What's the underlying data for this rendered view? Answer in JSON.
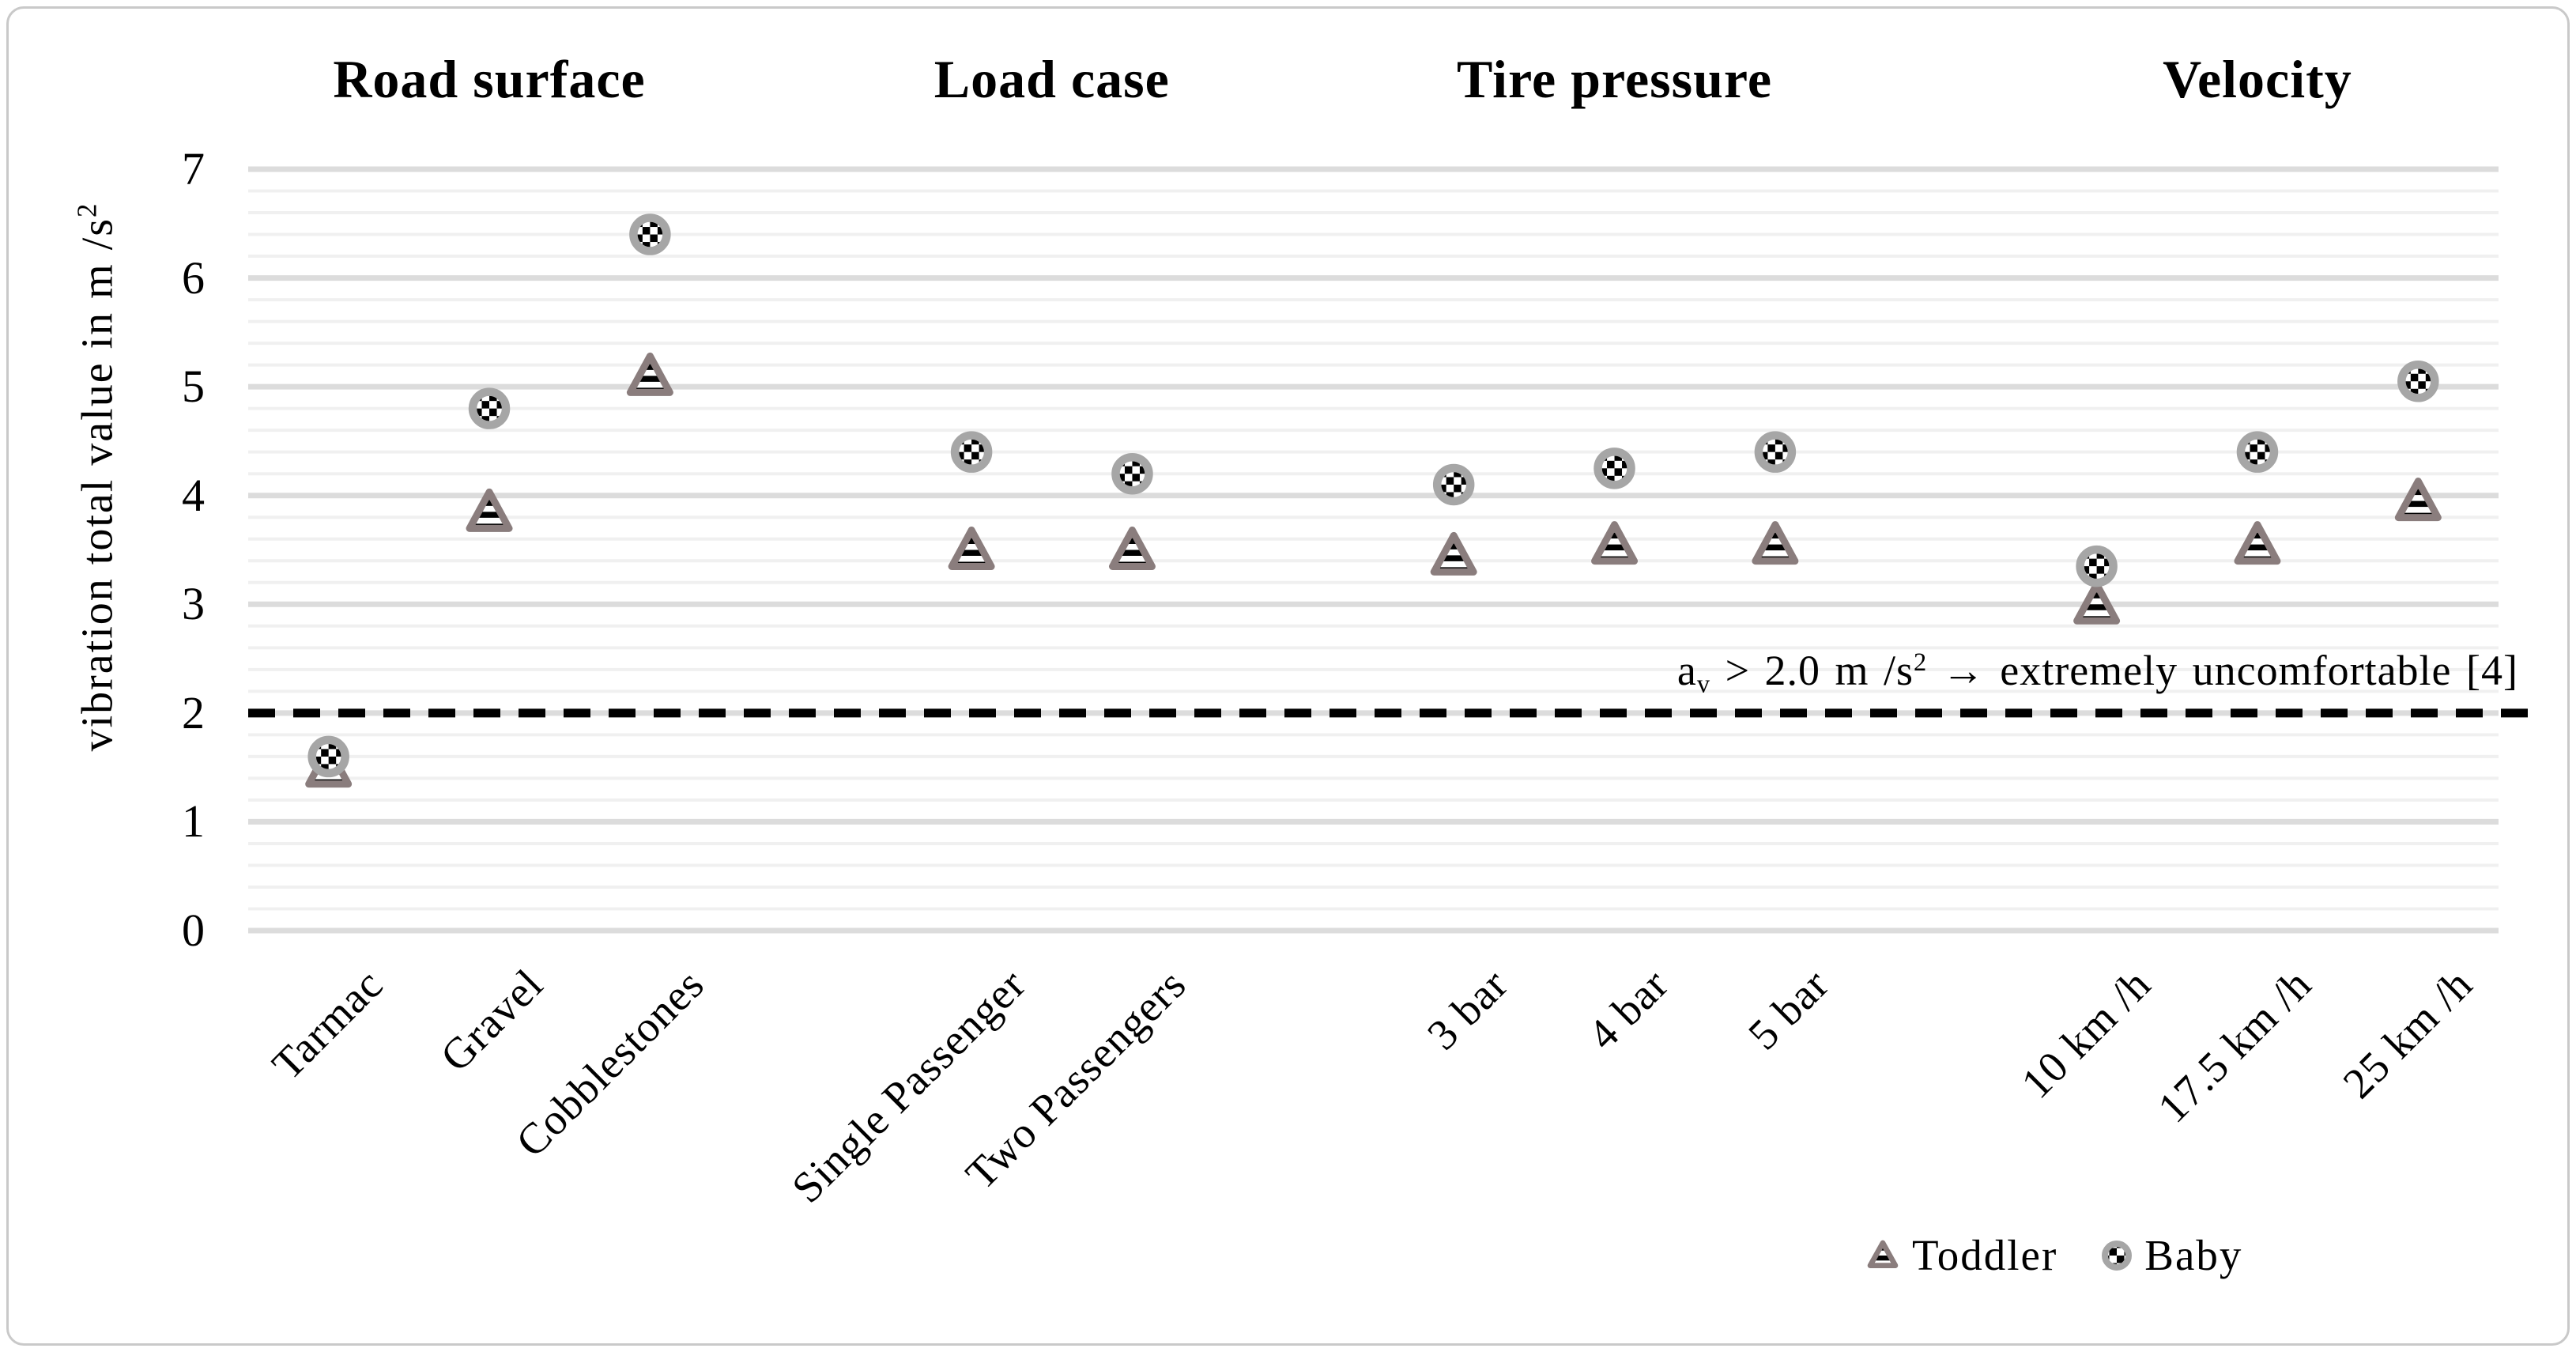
{
  "figure": {
    "y_axis_title": {
      "text": "vibration total value in m /s",
      "exp": "2"
    },
    "annotation": {
      "var": "a",
      "var_sub": "v",
      "comparison": " > 2.0 m /s",
      "exp": "2",
      "rest": " → extremely uncomfortable [4]"
    }
  },
  "chart_data": {
    "type": "scatter",
    "title": "",
    "xlabel": "",
    "ylabel": "vibration total value in m /s²",
    "ylim": [
      0,
      7
    ],
    "y_ticks": [
      0,
      1,
      2,
      3,
      4,
      5,
      6,
      7
    ],
    "minor_grid_step": 0.2,
    "grid": "on",
    "legend_position": "bottom-right",
    "threshold_line": {
      "value": 2.0,
      "style": "dashed",
      "color": "#000000",
      "label": "a_v > 2.0 m/s² → extremely uncomfortable [4]"
    },
    "groups": [
      {
        "title": "Road surface",
        "categories": [
          "Tarmac",
          "Gravel",
          "Cobblestones"
        ]
      },
      {
        "title": "Load case",
        "categories": [
          "Single Passenger",
          "Two Passengers"
        ]
      },
      {
        "title": "Tire pressure",
        "categories": [
          "3 bar",
          "4 bar",
          "5 bar"
        ]
      },
      {
        "title": "Velocity",
        "categories": [
          "10 km /h",
          "17.5 km /h",
          "25 km /h"
        ]
      }
    ],
    "series": [
      {
        "name": "Toddler",
        "marker": "triangle-striped",
        "marker_outline_color": "#8a7d7d",
        "values": [
          1.5,
          3.85,
          5.1,
          3.5,
          3.5,
          3.45,
          3.55,
          3.55,
          3.0,
          3.55,
          3.95
        ]
      },
      {
        "name": "Baby",
        "marker": "circle-checker",
        "marker_outline_color": "#a6a6a6",
        "values": [
          1.6,
          4.8,
          6.4,
          4.4,
          4.2,
          4.1,
          4.25,
          4.4,
          3.35,
          4.4,
          5.05
        ]
      }
    ],
    "colors": {
      "major_gridline": "#dcdcdc",
      "minor_gridline": "#f0f0f0",
      "threshold": "#000000"
    }
  }
}
